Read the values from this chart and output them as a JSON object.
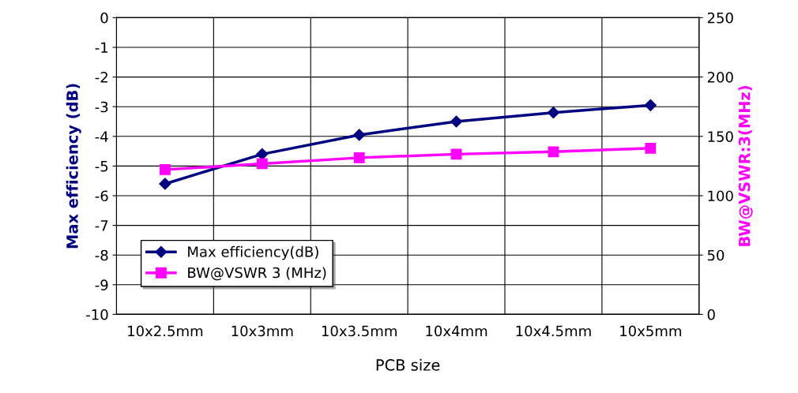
{
  "chart_data": {
    "type": "line",
    "xlabel": "PCB size",
    "ylabel": "Max efficiency (dB)",
    "y2label": "BW@VSWR:3(MHz)",
    "categories": [
      "10x2.5mm",
      "10x3mm",
      "10x3.5mm",
      "10x4mm",
      "10x4.5mm",
      "10x5mm"
    ],
    "series": [
      {
        "name": "Max efficiency(dB)",
        "color": "#000080",
        "marker": "diamond",
        "values": [
          -5.6,
          -4.6,
          -3.95,
          -3.5,
          -3.2,
          -2.95
        ]
      },
      {
        "name": "BW@VSWR 3 (MHz)",
        "color": "#ff00ff",
        "marker": "square",
        "axis": "y2",
        "values": [
          122,
          127,
          132,
          135,
          137,
          140
        ]
      }
    ],
    "ylim": [
      -10,
      0
    ],
    "yticks": [
      -10,
      -9,
      -8,
      -7,
      -6,
      -5,
      -4,
      -3,
      -2,
      -1,
      0
    ],
    "y2lim": [
      0,
      250
    ],
    "y2ticks": [
      0,
      50,
      100,
      150,
      200,
      250
    ],
    "grid": true,
    "legend": "bottom left"
  }
}
